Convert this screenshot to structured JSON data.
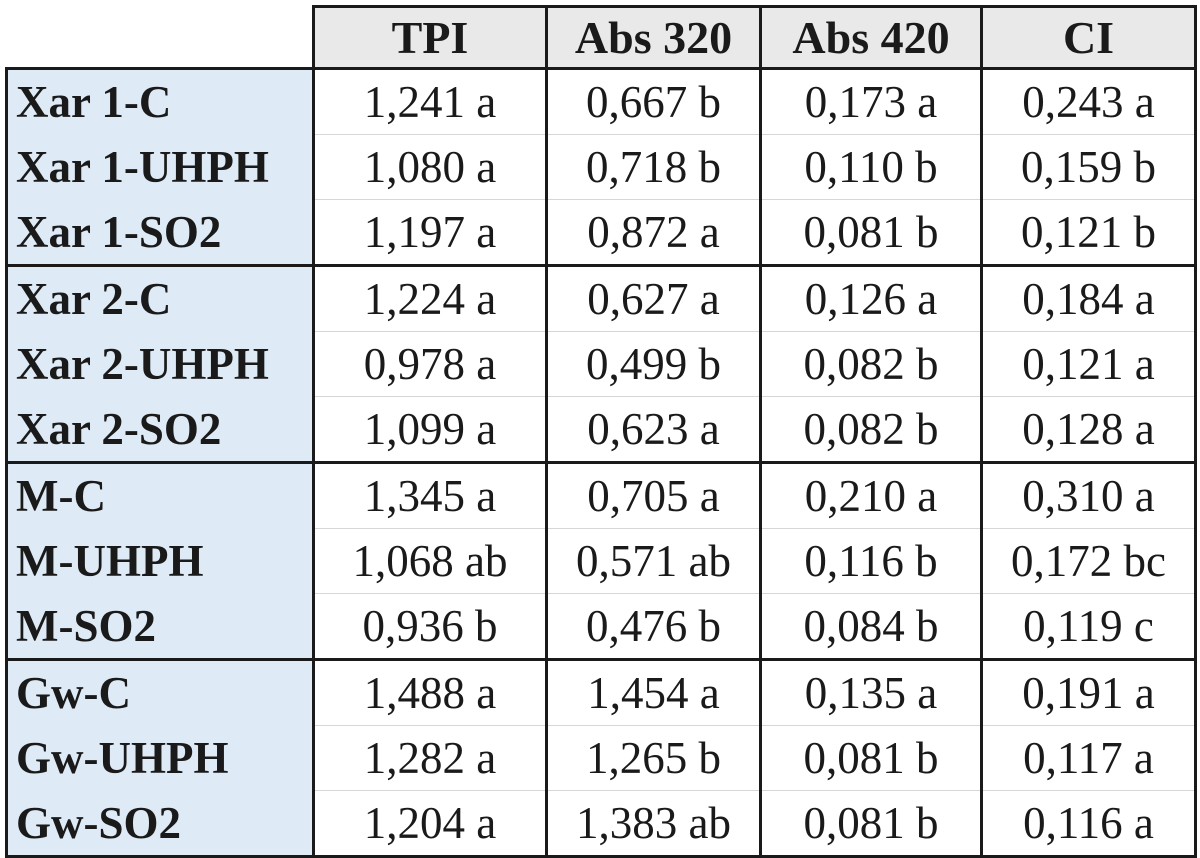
{
  "table": {
    "headers": [
      "",
      "TPI",
      "Abs 320",
      "Abs 420",
      "CI"
    ],
    "groups": [
      {
        "rows": [
          {
            "label": "Xar 1-C",
            "values": [
              "1,241 a",
              "0,667 b",
              "0,173 a",
              "0,243 a"
            ]
          },
          {
            "label": "Xar 1-UHPH",
            "values": [
              "1,080 a",
              "0,718 b",
              "0,110 b",
              "0,159 b"
            ]
          },
          {
            "label": "Xar 1-SO2",
            "values": [
              "1,197 a",
              "0,872 a",
              "0,081 b",
              "0,121 b"
            ]
          }
        ]
      },
      {
        "rows": [
          {
            "label": "Xar 2-C",
            "values": [
              "1,224 a",
              "0,627 a",
              "0,126 a",
              "0,184 a"
            ]
          },
          {
            "label": "Xar 2-UHPH",
            "values": [
              "0,978 a",
              "0,499 b",
              "0,082 b",
              "0,121 a"
            ]
          },
          {
            "label": "Xar 2-SO2",
            "values": [
              "1,099 a",
              "0,623 a",
              "0,082 b",
              "0,128 a"
            ]
          }
        ]
      },
      {
        "rows": [
          {
            "label": "M-C",
            "values": [
              "1,345 a",
              "0,705 a",
              "0,210 a",
              "0,310 a"
            ]
          },
          {
            "label": "M-UHPH",
            "values": [
              "1,068 ab",
              "0,571 ab",
              "0,116 b",
              "0,172 bc"
            ]
          },
          {
            "label": "M-SO2",
            "values": [
              "0,936 b",
              "0,476 b",
              "0,084 b",
              "0,119 c"
            ]
          }
        ]
      },
      {
        "rows": [
          {
            "label": "Gw-C",
            "values": [
              "1,488 a",
              "1,454 a",
              "0,135 a",
              "0,191 a"
            ]
          },
          {
            "label": "Gw-UHPH",
            "values": [
              "1,282 a",
              "1,265 b",
              "0,081 b",
              "0,117 a"
            ]
          },
          {
            "label": "Gw-SO2",
            "values": [
              "1,204 a",
              "1,383 ab",
              "0,081 b",
              "0,116 a"
            ]
          }
        ]
      }
    ]
  },
  "colors": {
    "header_bg": "#e9e9e9",
    "row_label_bg": "#deeaf6",
    "border": "#1a1a1a",
    "text": "#1a1a1a"
  }
}
